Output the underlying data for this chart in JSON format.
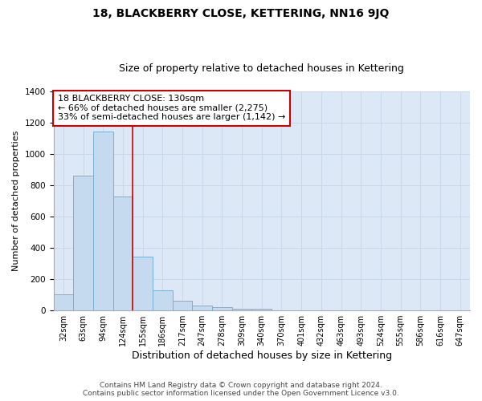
{
  "title1": "18, BLACKBERRY CLOSE, KETTERING, NN16 9JQ",
  "title2": "Size of property relative to detached houses in Kettering",
  "xlabel": "Distribution of detached houses by size in Kettering",
  "ylabel": "Number of detached properties",
  "footer1": "Contains HM Land Registry data © Crown copyright and database right 2024.",
  "footer2": "Contains public sector information licensed under the Open Government Licence v3.0.",
  "categories": [
    "32sqm",
    "63sqm",
    "94sqm",
    "124sqm",
    "155sqm",
    "186sqm",
    "217sqm",
    "247sqm",
    "278sqm",
    "309sqm",
    "340sqm",
    "370sqm",
    "401sqm",
    "432sqm",
    "463sqm",
    "493sqm",
    "524sqm",
    "555sqm",
    "586sqm",
    "616sqm",
    "647sqm"
  ],
  "values": [
    105,
    860,
    1145,
    730,
    345,
    130,
    60,
    30,
    20,
    10,
    10,
    0,
    0,
    0,
    0,
    0,
    0,
    0,
    0,
    0,
    0
  ],
  "bar_color": "#c5d9ef",
  "bar_edge_color": "#7aafd4",
  "vline_x": 3.5,
  "vline_color": "#cc0000",
  "annotation_text": "18 BLACKBERRY CLOSE: 130sqm\n← 66% of detached houses are smaller (2,275)\n33% of semi-detached houses are larger (1,142) →",
  "annotation_box_color": "#ffffff",
  "annotation_box_edge": "#cc0000",
  "ylim": [
    0,
    1400
  ],
  "yticks": [
    0,
    200,
    400,
    600,
    800,
    1000,
    1200,
    1400
  ],
  "grid_color": "#c8d8e8",
  "bg_color": "#dce8f5",
  "title1_fontsize": 10,
  "title2_fontsize": 9,
  "annotation_fontsize": 8,
  "footer_fontsize": 6.5,
  "ylabel_fontsize": 8,
  "xlabel_fontsize": 9
}
